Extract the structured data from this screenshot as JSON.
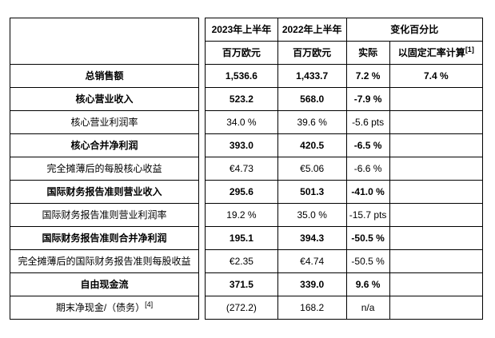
{
  "table": {
    "header": {
      "col_2023": "2023年上半年",
      "col_2022": "2022年上半年",
      "change_pct": "变化百分比",
      "unit_2023": "百万欧元",
      "unit_2022": "百万欧元",
      "actual": "实际",
      "constant_currency": "以固定汇率计算",
      "constant_currency_sup": "[1]"
    },
    "rows": [
      {
        "label": "总销售额",
        "bold": true,
        "v2023": "1,536.6",
        "v2022": "1,433.7",
        "actual": "7.2 %",
        "constant": "7.4 %"
      },
      {
        "label": "核心营业收入",
        "bold": true,
        "v2023": "523.2",
        "v2022": "568.0",
        "actual": "-7.9 %",
        "constant": ""
      },
      {
        "label": "核心营业利润率",
        "bold": false,
        "v2023": "34.0 %",
        "v2022": "39.6 %",
        "actual": "-5.6 pts",
        "constant": ""
      },
      {
        "label": "核心合并净利润",
        "bold": true,
        "v2023": "393.0",
        "v2022": "420.5",
        "actual": "-6.5 %",
        "constant": ""
      },
      {
        "label": "完全摊薄后的每股核心收益",
        "bold": false,
        "v2023": "€4.73",
        "v2022": "€5.06",
        "actual": "-6.6 %",
        "constant": ""
      },
      {
        "label": "国际财务报告准则营业收入",
        "bold": true,
        "v2023": "295.6",
        "v2022": "501.3",
        "actual": "-41.0 %",
        "constant": ""
      },
      {
        "label": "国际财务报告准则营业利润率",
        "bold": false,
        "v2023": "19.2 %",
        "v2022": "35.0 %",
        "actual": "-15.7 pts",
        "constant": ""
      },
      {
        "label": "国际财务报告准则合并净利润",
        "bold": true,
        "v2023": "195.1",
        "v2022": "394.3",
        "actual": "-50.5 %",
        "constant": ""
      },
      {
        "label": "完全摊薄后的国际财务报告准则每股收益",
        "bold": false,
        "v2023": "€2.35",
        "v2022": "€4.74",
        "actual": "-50.5 %",
        "constant": ""
      },
      {
        "label": "自由现金流",
        "bold": true,
        "v2023": "371.5",
        "v2022": "339.0",
        "actual": "9.6 %",
        "constant": ""
      },
      {
        "label": "期末净现金/（债务）",
        "label_sup": "[4]",
        "bold": false,
        "v2023": "(272.2)",
        "v2022": "168.2",
        "actual": "n/a",
        "constant": ""
      }
    ]
  },
  "colors": {
    "border": "#000000",
    "text": "#000000",
    "background": "#ffffff"
  }
}
